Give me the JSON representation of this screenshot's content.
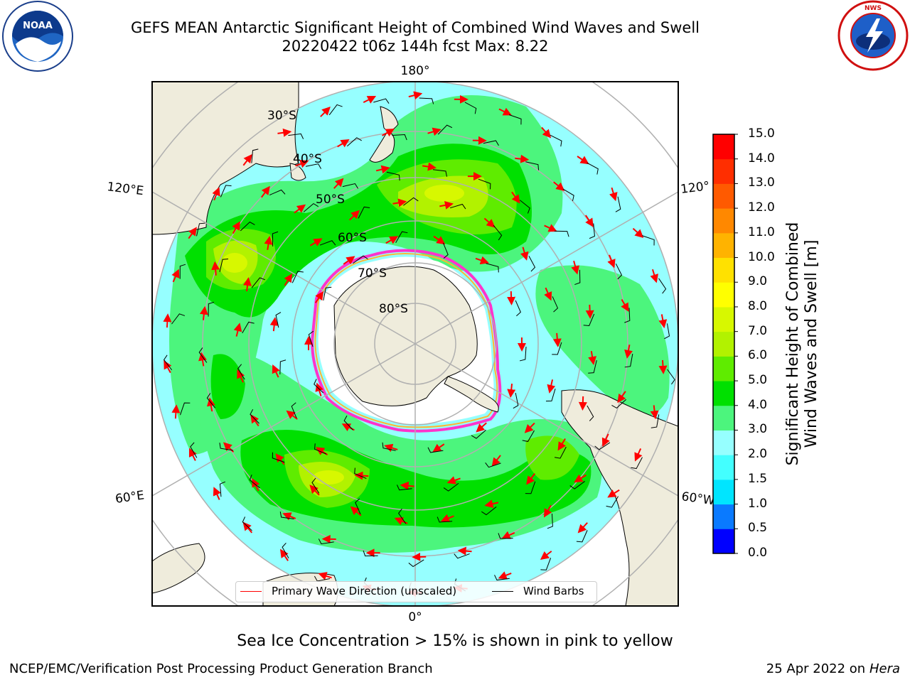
{
  "title": {
    "line1": "GEFS MEAN Antarctic Significant Height of Combined Wind Waves and Swell",
    "line2": "20220422 t06z 144h fcst   Max: 8.22"
  },
  "logos": {
    "left": {
      "name": "noaa-logo",
      "text": "NOAA"
    },
    "right": {
      "name": "nws-logo",
      "text": "NATIONAL WEATHER SERVICE"
    }
  },
  "map": {
    "projection": "south-polar-stereographic",
    "longitude_labels": [
      "180°",
      "120°E",
      "120°",
      "60°E",
      "60°W",
      "0°"
    ],
    "latitude_labels": [
      "30°S",
      "40°S",
      "50°S",
      "60°S",
      "70°S",
      "80°S"
    ],
    "colors": {
      "land": "#efecdc",
      "sea_ice": "#ffffff",
      "graticule": "#b0b0b0",
      "wave_arrow": "#ff0000",
      "wind_barb": "#000000"
    }
  },
  "legend": {
    "wave_direction": "Primary Wave Direction (unscaled)",
    "wind_barbs": "Wind Barbs"
  },
  "colorbar": {
    "label_line1": "Significant Height of Combined",
    "label_line2": "Wind Waves and Swell [m]",
    "ticks": [
      "0.0",
      "0.5",
      "1.0",
      "1.5",
      "2.0",
      "3.0",
      "4.0",
      "5.0",
      "6.0",
      "7.0",
      "8.0",
      "9.0",
      "10.0",
      "11.0",
      "12.0",
      "13.0",
      "14.0",
      "15.0"
    ],
    "colors": [
      "#0000ff",
      "#0a7aff",
      "#00e5ff",
      "#43ffff",
      "#96ffff",
      "#4cf57d",
      "#00e000",
      "#5fec00",
      "#b2f200",
      "#d7f800",
      "#ffff00",
      "#ffe100",
      "#ffb300",
      "#ff8800",
      "#ff5a00",
      "#ff2e00",
      "#ff0000"
    ]
  },
  "ice_note": "Sea Ice Concentration > 15% is shown in pink to yellow",
  "footer": {
    "left": "NCEP/EMC/Verification Post Processing Product Generation Branch",
    "right_prefix": "25 Apr 2022 on ",
    "right_machine": "Hera"
  }
}
